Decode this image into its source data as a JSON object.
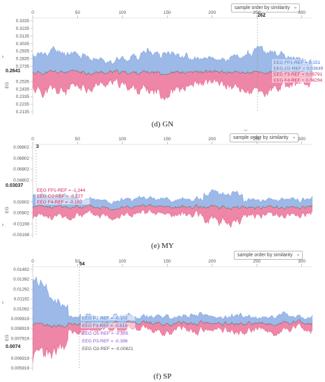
{
  "sort_control": {
    "label": "sample order by similarity",
    "icon": "chevron-down-icon"
  },
  "side_toggle": {
    "glyph": "›"
  },
  "collapse_glyph": "⌣",
  "chart_data": [
    {
      "type": "area",
      "caption": "(d) GN",
      "cursor_x_label": "262",
      "y_value_label": "0.2641",
      "ylabel": "EG",
      "x_ticks": [
        0,
        50,
        100,
        150,
        200,
        250,
        300
      ],
      "xlim": [
        0,
        312
      ],
      "y_ticks": [
        "0.3335",
        "0.3235",
        "0.3135",
        "0.3035",
        "0.2935",
        "0.2835",
        "0.2735",
        "0.2641",
        "0.2535",
        "0.2435",
        "0.2335",
        "0.2235",
        "0.2135"
      ],
      "ylim": [
        0.2135,
        0.3335
      ],
      "baseline": 0.2641,
      "upper_color": "#4a7fd4",
      "lower_color": "#e0245e",
      "mean_color": "#6b6b6b",
      "seed": 11,
      "series": [
        {
          "name": "EEG FP1-REF = 0.151",
          "color": "#3a6fd0"
        },
        {
          "name": "EEG O2-REF = 0.03649",
          "color": "#3a6fd0"
        },
        {
          "name": "EEG F3-REF = 0.05791",
          "color": "#d01f55"
        },
        {
          "name": "EEG F4-REF = 0.04294",
          "color": "#d01f55"
        }
      ]
    },
    {
      "type": "area",
      "caption": "(e) MY",
      "cursor_x_label": "3",
      "y_value_label": "0.03037",
      "ylabel": "EG",
      "x_ticks": [
        0,
        50,
        100,
        150,
        200,
        250,
        300
      ],
      "xlim": [
        0,
        312
      ],
      "y_ticks": [
        "0.09802",
        "0.08802",
        "0.06802",
        "0.04802",
        "0.03037",
        "0.02802",
        "0.00802",
        "-0.01198",
        "-0.03198"
      ],
      "ylim": [
        -0.03198,
        0.09802
      ],
      "baseline": 0.00802,
      "upper_color": "#4a7fd4",
      "lower_color": "#e0245e",
      "mean_color": "#6b6b6b",
      "seed": 23,
      "series": [
        {
          "name": "EEG FP1-REF = -1.244",
          "color": "#d01f55"
        },
        {
          "name": "EEG O2-REF = -0.227",
          "color": "#d01f55"
        },
        {
          "name": "EEG F4-REF = -0.192",
          "color": "#d01f55"
        }
      ]
    },
    {
      "type": "area",
      "caption": "(f) SP",
      "cursor_x_label": "54",
      "y_value_label": "0.0074",
      "ylabel": "EG",
      "x_ticks": [
        0,
        50,
        100,
        150,
        200,
        250,
        300
      ],
      "xlim": [
        0,
        312
      ],
      "y_ticks": [
        "0.01492",
        "0.01392",
        "0.01292",
        "0.01192",
        "0.01092",
        "0.009919",
        "0.008919",
        "0.007919",
        "0.0074",
        "0.006919",
        "0.005919"
      ],
      "ylim": [
        0.005919,
        0.01492
      ],
      "baseline": 0.009919,
      "upper_color": "#4a7fd4",
      "lower_color": "#e0245e",
      "mean_color": "#6b6b6b",
      "seed": 37,
      "series": [
        {
          "name": "EEG P2-REF = -0.102",
          "color": "#3a6fd0"
        },
        {
          "name": "EEG F3-REF = -0.618",
          "color": "#3a6fd0"
        },
        {
          "name": "EEG O1-REF = -0.305",
          "color": "#8e4fd6"
        },
        {
          "name": "EEG P3-REF = -0.396",
          "color": "#8e4fd6"
        },
        {
          "name": "EEG O2-REF = -0.00821",
          "color": "#555555"
        }
      ]
    }
  ]
}
